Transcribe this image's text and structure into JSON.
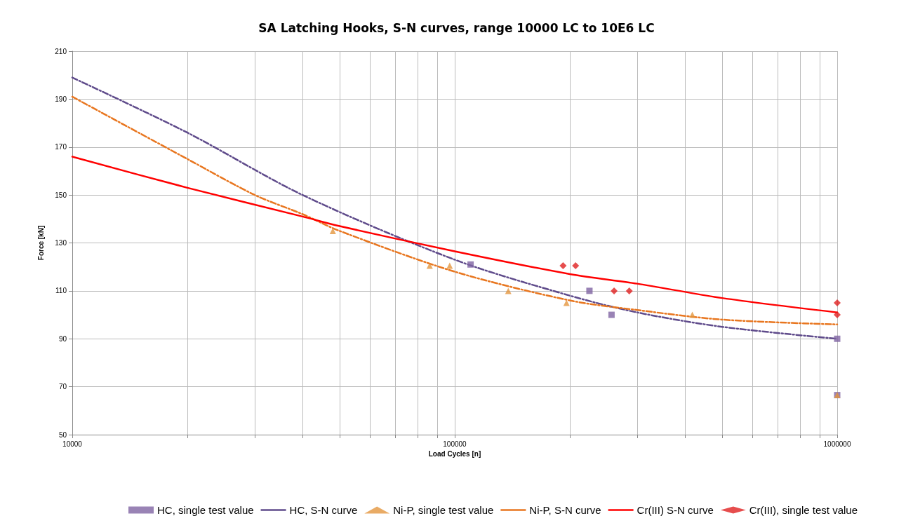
{
  "chart_data": {
    "type": "scatter",
    "title": "SA Latching Hooks, S-N curves, range 10000 LC to 10E6 LC",
    "xlabel": "Load Cycles [n]",
    "ylabel": "Force [kN]",
    "log": "x",
    "grid": true,
    "legend": "bottom",
    "xlim": [
      10000,
      1000000
    ],
    "xticks": [
      10000,
      {
        "value": 20000,
        "label": null
      },
      {
        "value": 30000,
        "label": null
      },
      {
        "value": 40000,
        "label": null
      },
      {
        "value": 50000,
        "label": null
      },
      {
        "value": 60000,
        "label": null
      },
      {
        "value": 70000,
        "label": null
      },
      {
        "value": 80000,
        "label": null
      },
      {
        "value": 90000,
        "label": null
      },
      100000,
      {
        "value": 200000,
        "label": null
      },
      {
        "value": 300000,
        "label": null
      },
      {
        "value": 400000,
        "label": null
      },
      {
        "value": 500000,
        "label": null
      },
      {
        "value": 600000,
        "label": null
      },
      {
        "value": 700000,
        "label": null
      },
      {
        "value": 800000,
        "label": null
      },
      {
        "value": 900000,
        "label": null
      },
      1000000
    ],
    "ylim": [
      50,
      210
    ],
    "yticks": [
      50,
      70,
      90,
      110,
      130,
      150,
      170,
      190,
      210
    ],
    "series": [
      {
        "name": "HC, single test value",
        "marker": "square",
        "color": "#8064a2",
        "x": [
          110000,
          225000,
          257000,
          1000000,
          1000000
        ],
        "values": [
          121,
          110,
          100,
          90,
          66.5
        ]
      },
      {
        "name": "HC, S-N curve",
        "type": "line",
        "marker": "none",
        "line_style": "dashed",
        "color": "#5f4b8b",
        "x": [
          10000,
          20000,
          40000,
          100000,
          200000,
          300000,
          500000,
          1000000
        ],
        "values": [
          199,
          176,
          150,
          123,
          108,
          101,
          95,
          90
        ]
      },
      {
        "name": "Ni-P, single test value",
        "marker": "triangle",
        "color": "#e3963e",
        "x": [
          48000,
          86000,
          97000,
          138000,
          196000,
          418000,
          1000000
        ],
        "values": [
          135,
          120.5,
          120.5,
          110,
          105,
          100,
          66.5
        ]
      },
      {
        "name": "Ni-P, S-N curve",
        "type": "line",
        "marker": "none",
        "line_style": "dashed",
        "color": "#e8761f",
        "x": [
          10000,
          20000,
          30000,
          40000,
          50000,
          100000,
          200000,
          300000,
          500000,
          1000000
        ],
        "values": [
          191,
          165,
          150,
          142,
          135,
          118,
          106,
          102,
          98,
          96
        ]
      },
      {
        "name": "Cr(III) S-N curve",
        "type": "line",
        "marker": "none",
        "line_style": "solid",
        "color": "#ff0000",
        "x": [
          10000,
          20000,
          40000,
          50000,
          100000,
          200000,
          300000,
          500000,
          1000000
        ],
        "values": [
          166,
          153,
          141,
          137,
          126.5,
          117,
          113,
          107,
          101
        ]
      },
      {
        "name": "Cr(III), single test value",
        "marker": "diamond",
        "color": "#e02020",
        "x": [
          192000,
          207000,
          261000,
          286000,
          1000000,
          1000000
        ],
        "values": [
          120.5,
          120.5,
          110,
          110,
          105,
          100
        ]
      }
    ]
  }
}
